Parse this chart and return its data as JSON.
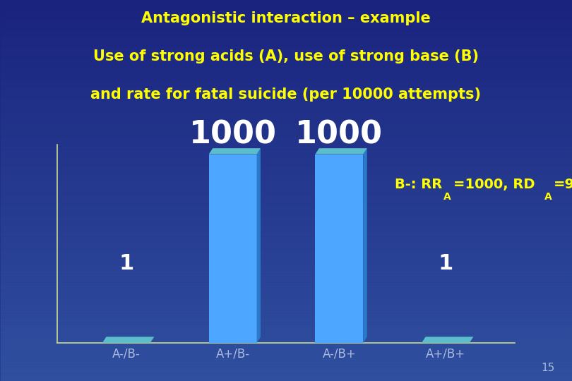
{
  "title_line1": "Antagonistic interaction – example",
  "title_line2": "Use of strong acids (A), use of strong base (B)",
  "title_line3": "and rate for fatal suicide (per 10000 attempts)",
  "categories": [
    "A-/B-",
    "A+/B-",
    "A-/B+",
    "A+/B+"
  ],
  "values": [
    1,
    1000,
    1000,
    1
  ],
  "bar_color_main": "#4da6ff",
  "bar_color_top": "#5bbccc",
  "bar_color_side": "#2a7acc",
  "bar_color_base": "#b0b8b0",
  "background_color_top": "#1a237e",
  "background_color_bottom": "#3050a0",
  "title_color": "#ffff00",
  "bar_label_large_color": "#ffffff",
  "bar_label_small_color": "#ffffff",
  "annotation_color": "#ffff00",
  "axis_label_color": "#aabbdd",
  "spine_color": "#ccdd88",
  "page_number": "15",
  "ylim": [
    0,
    1050
  ],
  "bar_width": 0.45,
  "large_label_fontsize": 32,
  "small_label_fontsize": 22,
  "title_fontsize": 15,
  "annot_fontsize": 14,
  "annot_sub_fontsize": 10,
  "xtick_fontsize": 12
}
